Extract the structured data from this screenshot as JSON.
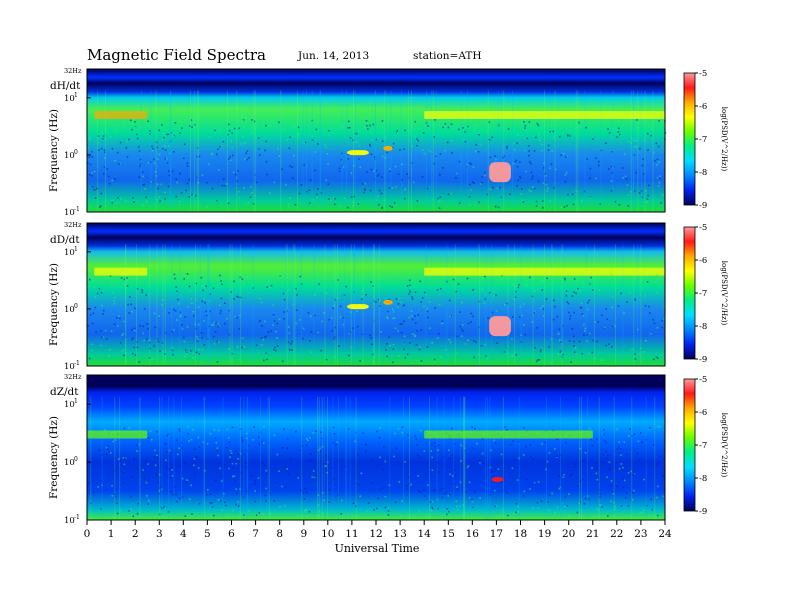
{
  "header": {
    "title": "Magnetic Field Spectra",
    "date": "Jun. 14, 2013",
    "station": "station=ATH"
  },
  "chart_data": {
    "type": "heatmap",
    "xlabel": "Universal Time",
    "ylabel": "Frequency (Hz)",
    "x_range": [
      0,
      24
    ],
    "x_ticks": [
      0,
      1,
      2,
      3,
      4,
      5,
      6,
      7,
      8,
      9,
      10,
      11,
      12,
      13,
      14,
      15,
      16,
      17,
      18,
      19,
      20,
      21,
      22,
      23,
      24
    ],
    "y_scale": "log",
    "y_range": [
      0.1,
      32
    ],
    "y_top_label": "32Hz",
    "y_tick_labels": [
      "10",
      "10",
      "10"
    ],
    "y_tick_exponents": [
      "1",
      "0",
      "-1"
    ],
    "y_tick_values": [
      10,
      1,
      0.1
    ],
    "colorbar": {
      "label": "log(PSD(V^2/Hz))",
      "range": [
        -9,
        -5
      ],
      "tick_labels": [
        "-5",
        "-6",
        "-7",
        "-8",
        "-9"
      ],
      "tick_values": [
        -5,
        -6,
        -7,
        -8,
        -9
      ],
      "colors": [
        "#ff9a9a",
        "#ff1a1a",
        "#ffaa00",
        "#ffff00",
        "#66ff00",
        "#00ee88",
        "#00ddff",
        "#0088ff",
        "#0022ee",
        "#00005a"
      ]
    },
    "panels": [
      {
        "name": "dH/dt",
        "features": [
          {
            "label": "",
            "t_start": 0.3,
            "t_end": 2.5,
            "f": 5.0,
            "level": -6.0
          },
          {
            "label": "",
            "t_start": 14.0,
            "t_end": 24.0,
            "f": 5.0,
            "level": -6.3
          },
          {
            "label": "",
            "t_start": 16.7,
            "t_end": 17.6,
            "f": 0.5,
            "level": -5.0
          },
          {
            "label": "",
            "t_start": 10.8,
            "t_end": 11.7,
            "f": 1.1,
            "level": -6.2
          },
          {
            "label": "",
            "t_start": 12.3,
            "t_end": 12.7,
            "f": 1.3,
            "level": -6.0
          }
        ]
      },
      {
        "name": "dD/dt",
        "features": [
          {
            "label": "",
            "t_start": 0.3,
            "t_end": 2.5,
            "f": 4.5,
            "level": -6.3
          },
          {
            "label": "",
            "t_start": 14.0,
            "t_end": 24.0,
            "f": 4.5,
            "level": -6.5
          },
          {
            "label": "",
            "t_start": 16.7,
            "t_end": 17.6,
            "f": 0.5,
            "level": -5.0
          },
          {
            "label": "",
            "t_start": 10.8,
            "t_end": 11.7,
            "f": 1.1,
            "level": -6.2
          },
          {
            "label": "",
            "t_start": 12.3,
            "t_end": 12.7,
            "f": 1.3,
            "level": -6.0
          }
        ]
      },
      {
        "name": "dZ/dt",
        "features": [
          {
            "label": "",
            "t_start": 0.0,
            "t_end": 2.5,
            "f": 3.0,
            "level": -6.8
          },
          {
            "label": "",
            "t_start": 14.0,
            "t_end": 21.0,
            "f": 3.0,
            "level": -6.8
          },
          {
            "label": "",
            "t_start": 16.8,
            "t_end": 17.3,
            "f": 0.5,
            "level": -5.5
          }
        ]
      }
    ]
  }
}
